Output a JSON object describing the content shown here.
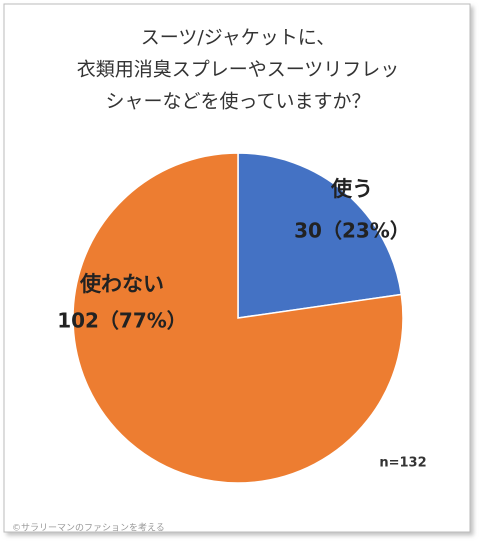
{
  "chart_data": {
    "type": "pie",
    "title": [
      "スーツ/ジャケットに、",
      "衣類用消臭スプレーやスーツリフレッ",
      "シャーなどを使っていますか？"
    ],
    "categories": [
      "使う",
      "使わない"
    ],
    "values": [
      30,
      102
    ],
    "value_labels": [
      "30（23%）",
      "102（77%）"
    ],
    "colors": [
      "#4472c4",
      "#ed7d31"
    ],
    "note": "n=132",
    "credit": "©サラリーマンのファションを考える"
  }
}
